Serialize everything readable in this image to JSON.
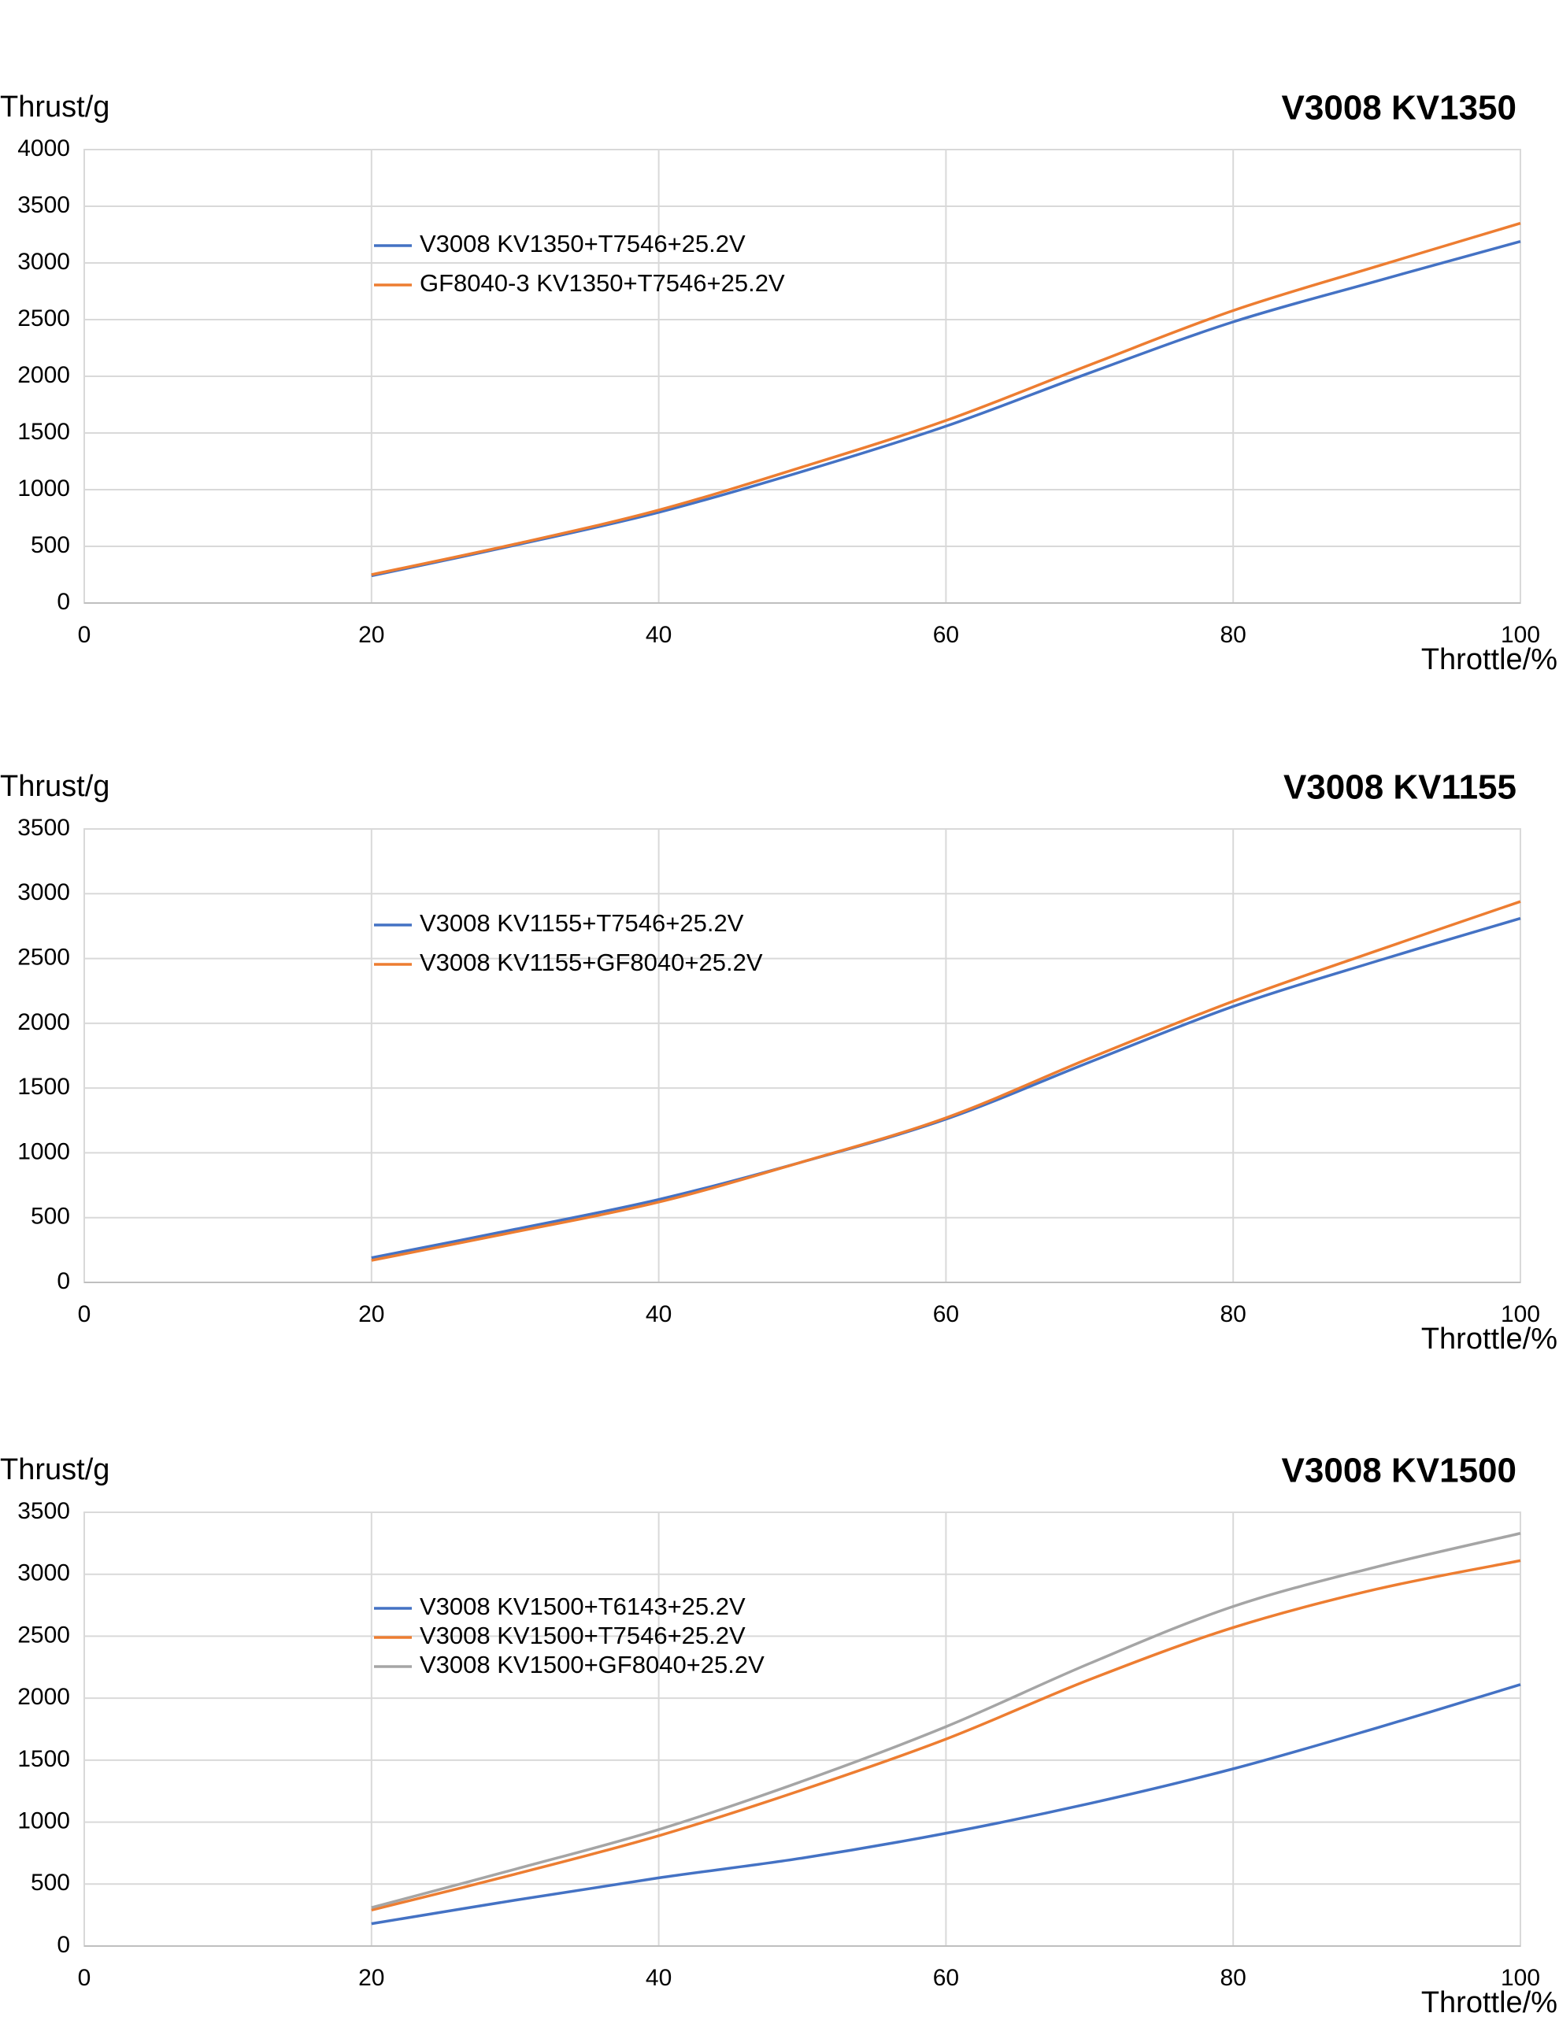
{
  "chart_data": [
    {
      "type": "line",
      "title": "V3008  KV1350",
      "y_label": "Thrust/g",
      "x_label": "Throttle/%",
      "x": [
        20,
        30,
        40,
        50,
        60,
        70,
        80,
        90,
        100
      ],
      "xlim": [
        0,
        100
      ],
      "xticks": [
        0,
        20,
        40,
        60,
        80,
        100
      ],
      "ylim": [
        0,
        4000
      ],
      "yticks": [
        0,
        500,
        1000,
        1500,
        2000,
        2500,
        3000,
        3500,
        4000
      ],
      "grid": true,
      "series": [
        {
          "name": "V3008  KV1350+T7546+25.2V",
          "color": "#4472c4",
          "values": [
            240,
            510,
            800,
            1160,
            1560,
            2030,
            2480,
            2840,
            3190
          ]
        },
        {
          "name": "GF8040-3  KV1350+T7546+25.2V",
          "color": "#ed7d31",
          "values": [
            250,
            520,
            820,
            1200,
            1610,
            2100,
            2580,
            2970,
            3350
          ]
        }
      ]
    },
    {
      "type": "line",
      "title": "V3008  KV1155",
      "y_label": "Thrust/g",
      "x_label": "Throttle/%",
      "x": [
        20,
        30,
        40,
        50,
        60,
        70,
        80,
        90,
        100
      ],
      "xlim": [
        0,
        100
      ],
      "xticks": [
        0,
        20,
        40,
        60,
        80,
        100
      ],
      "ylim": [
        0,
        3500
      ],
      "yticks": [
        0,
        500,
        1000,
        1500,
        2000,
        2500,
        3000,
        3500
      ],
      "grid": true,
      "series": [
        {
          "name": "V3008  KV1155+T7546+25.2V",
          "color": "#4472c4",
          "values": [
            190,
            410,
            640,
            930,
            1260,
            1700,
            2130,
            2480,
            2810
          ]
        },
        {
          "name": "V3008  KV1155+GF8040+25.2V",
          "color": "#ed7d31",
          "values": [
            170,
            390,
            620,
            930,
            1270,
            1730,
            2170,
            2560,
            2940
          ]
        }
      ]
    },
    {
      "type": "line",
      "title": "V3008  KV1500",
      "y_label": "Thrust/g",
      "x_label": "Throttle/%",
      "x": [
        20,
        30,
        40,
        50,
        60,
        70,
        80,
        90,
        100
      ],
      "xlim": [
        0,
        100
      ],
      "xticks": [
        0,
        20,
        40,
        60,
        80,
        100
      ],
      "ylim": [
        0,
        3500
      ],
      "yticks": [
        0,
        500,
        1000,
        1500,
        2000,
        2500,
        3000,
        3500
      ],
      "grid": true,
      "series": [
        {
          "name": "V3008  KV1500+T6143+25.2V",
          "color": "#4472c4",
          "values": [
            180,
            370,
            550,
            710,
            910,
            1150,
            1430,
            1760,
            2110
          ]
        },
        {
          "name": "V3008  KV1500+T7546+25.2V",
          "color": "#ed7d31",
          "values": [
            290,
            580,
            890,
            1260,
            1670,
            2150,
            2570,
            2880,
            3110
          ]
        },
        {
          "name": "V3008  KV1500+GF8040+25.2V",
          "color": "#a5a5a5",
          "values": [
            310,
            620,
            940,
            1330,
            1770,
            2280,
            2740,
            3060,
            3330
          ]
        }
      ]
    }
  ]
}
